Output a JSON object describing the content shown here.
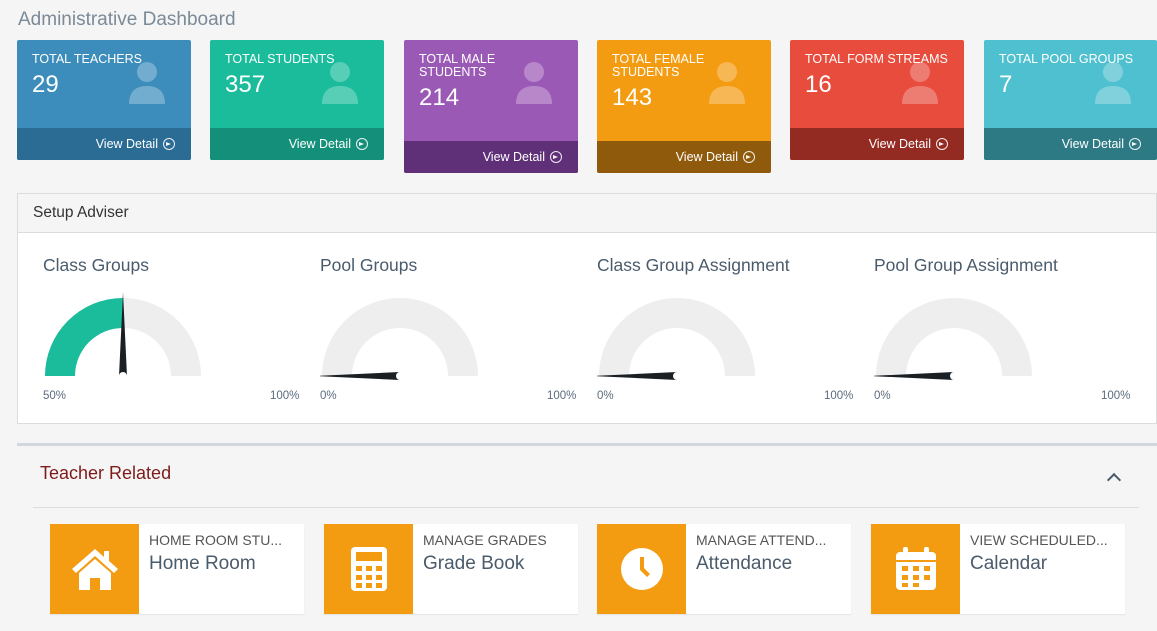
{
  "page": {
    "title": "Administrative Dashboard"
  },
  "stats": [
    {
      "label": "TOTAL TEACHERS",
      "value": "29",
      "link": "View Detail",
      "color": "#3c8dbc",
      "footer_color": "#2b6c94"
    },
    {
      "label": "TOTAL STUDENTS",
      "value": "357",
      "link": "View Detail",
      "color": "#1abc9c",
      "footer_color": "#14907a"
    },
    {
      "label": "TOTAL MALE STUDENTS",
      "value": "214",
      "link": "View Detail",
      "color": "#9b59b6",
      "footer_color": "#5f2f78"
    },
    {
      "label": "TOTAL FEMALE STUDENTS",
      "value": "143",
      "link": "View Detail",
      "color": "#f39c12",
      "footer_color": "#8f5a0c"
    },
    {
      "label": "TOTAL FORM STREAMS",
      "value": "16",
      "link": "View Detail",
      "color": "#e74c3c",
      "footer_color": "#942b22"
    },
    {
      "label": "TOTAL POOL GROUPS",
      "value": "7",
      "link": "View Detail",
      "color": "#4fc0cf",
      "footer_color": "#2d7a85"
    }
  ],
  "setup": {
    "heading": "Setup Adviser",
    "gauges": [
      {
        "title": "Class Groups",
        "min_label": "50%",
        "max_label": "100%",
        "level": 0.5
      },
      {
        "title": "Pool Groups",
        "min_label": "0%",
        "max_label": "100%",
        "level": 0
      },
      {
        "title": "Class Group Assignment",
        "min_label": "0%",
        "max_label": "100%",
        "level": 0
      },
      {
        "title": "Pool Group Assignment",
        "min_label": "0%",
        "max_label": "100%",
        "level": 0
      }
    ]
  },
  "teacher": {
    "heading": "Teacher Related",
    "tiles": [
      {
        "small": "HOME ROOM STU...",
        "big": "Home Room",
        "icon": "home-icon"
      },
      {
        "small": "MANAGE GRADES",
        "big": "Grade Book",
        "icon": "calculator-icon"
      },
      {
        "small": "MANAGE ATTEND...",
        "big": "Attendance",
        "icon": "clock-icon"
      },
      {
        "small": "VIEW SCHEDULED...",
        "big": "Calendar",
        "icon": "calendar-icon"
      }
    ]
  },
  "colors": {
    "accent": "#f39c12",
    "gauge_fill": "#1abc9c",
    "gauge_track": "#eeeeee",
    "needle": "#1a1f24"
  }
}
